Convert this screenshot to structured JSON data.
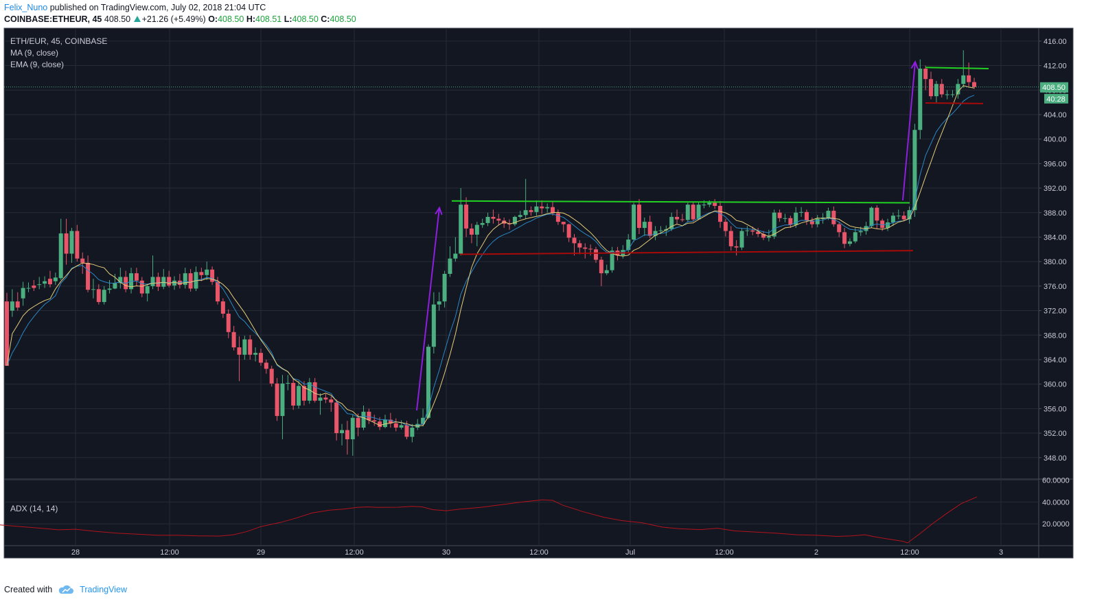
{
  "header": {
    "author": "Felix_Nuno",
    "published": "published on TradingView.com, July 02, 2018 21:04 UTC",
    "symbol": "COINBASE:ETHEUR, 45",
    "last": "408.50",
    "change": "+21.26 (+5.49%)",
    "o_label": "O:",
    "o_value": "408.50",
    "h_label": "H:",
    "h_value": "408.51",
    "l_label": "L:",
    "l_value": "408.50",
    "c_label": "C:",
    "c_value": "408.50"
  },
  "legend": {
    "pair": "ETH/EUR, 45, COINBASE",
    "ma": "MA (9, close)",
    "ema": "EMA (9, close)",
    "adx": "ADX (14, 14)"
  },
  "footer": {
    "created_with": "Created with",
    "brand": "TradingView"
  },
  "colors": {
    "background": "#131722",
    "up": "#4caf80",
    "down": "#e9566a",
    "ma": "#2b88c6",
    "ema": "#e7ce79",
    "adx": "#b3131c",
    "trend_green": "#22d222",
    "trend_red": "#a80a0a",
    "arrow": "#8f1ee0"
  },
  "chart_data": {
    "type": "candlestick",
    "price_axis": {
      "ticks": [
        "416.00",
        "412.00",
        "408.00",
        "404.00",
        "400.00",
        "396.00",
        "392.00",
        "388.00",
        "384.00",
        "380.00",
        "376.00",
        "372.00",
        "368.00",
        "364.00",
        "360.00",
        "356.00",
        "352.00",
        "348.00"
      ],
      "range": [
        344.5,
        418
      ]
    },
    "adx_axis": {
      "ticks": [
        "60.0000",
        "40.0000",
        "20.0000"
      ],
      "range": [
        0,
        61
      ]
    },
    "time_axis": {
      "labels": [
        "28",
        "12:00",
        "29",
        "12:00",
        "30",
        "12:00",
        "Jul",
        "12:00",
        "2",
        "12:00",
        "3"
      ]
    },
    "current_price": "408.50",
    "countdown": "40:28",
    "candles": [
      [
        373.5,
        363.0,
        374.9,
        373.5
      ],
      [
        372.0,
        373.5,
        375.5,
        371.0
      ],
      [
        373.5,
        372.5,
        375.0,
        372.0
      ],
      [
        374.0,
        375.7,
        376.7,
        372.8
      ],
      [
        375.7,
        375.7,
        376.6,
        375.0
      ],
      [
        376.1,
        375.7,
        377.0,
        375.2
      ],
      [
        376.2,
        376.3,
        377.5,
        375.5
      ],
      [
        376.4,
        376.8,
        377.6,
        375.7
      ],
      [
        377.2,
        376.3,
        378.5,
        375.8
      ],
      [
        376.8,
        377.4,
        378.2,
        376.2
      ],
      [
        377.3,
        384.6,
        387.0,
        377.0
      ],
      [
        384.6,
        381.3,
        387.0,
        379.5
      ],
      [
        381.3,
        385.0,
        385.5,
        379.8
      ],
      [
        385.0,
        380.5,
        386.0,
        380.0
      ],
      [
        380.5,
        379.8,
        381.5,
        378.0
      ],
      [
        379.8,
        375.4,
        381.0,
        375.0
      ],
      [
        375.4,
        375.5,
        377.2,
        374.0
      ],
      [
        375.5,
        373.4,
        376.3,
        373.0
      ],
      [
        373.4,
        375.4,
        376.0,
        373.0
      ],
      [
        375.4,
        375.6,
        377.0,
        374.8
      ],
      [
        375.6,
        376.5,
        378.0,
        375.5
      ],
      [
        376.5,
        377.5,
        379.0,
        375.6
      ],
      [
        377.5,
        375.5,
        378.5,
        375.0
      ],
      [
        375.5,
        378.1,
        379.0,
        374.8
      ],
      [
        378.1,
        376.9,
        379.0,
        376.0
      ],
      [
        376.9,
        374.8,
        377.5,
        374.2
      ],
      [
        374.8,
        376.0,
        376.3,
        373.5
      ],
      [
        376.0,
        377.5,
        381.0,
        375.5
      ],
      [
        377.5,
        375.9,
        378.2,
        375.2
      ],
      [
        375.9,
        377.5,
        378.8,
        375.5
      ],
      [
        377.5,
        376.1,
        378.5,
        375.8
      ],
      [
        376.1,
        376.9,
        377.6,
        375.4
      ],
      [
        376.9,
        376.2,
        378.0,
        375.6
      ],
      [
        376.2,
        378.1,
        379.0,
        375.6
      ],
      [
        378.1,
        375.6,
        378.8,
        375.1
      ],
      [
        375.6,
        378.3,
        379.2,
        375.2
      ],
      [
        378.3,
        377.8,
        379.0,
        376.8
      ],
      [
        377.8,
        378.7,
        380.0,
        377.0
      ],
      [
        378.7,
        376.7,
        379.2,
        376.2
      ],
      [
        376.7,
        373.5,
        377.5,
        373.0
      ],
      [
        373.5,
        371.5,
        374.0,
        370.8
      ],
      [
        371.5,
        368.5,
        372.2,
        367.5
      ],
      [
        368.5,
        366.0,
        369.5,
        365.5
      ],
      [
        366.0,
        364.8,
        367.8,
        360.5
      ],
      [
        364.8,
        367.3,
        367.9,
        364.0
      ],
      [
        367.3,
        364.8,
        368.0,
        364.0
      ],
      [
        364.8,
        365.1,
        366.0,
        363.7
      ],
      [
        365.1,
        363.5,
        365.8,
        363.0
      ],
      [
        363.5,
        362.5,
        364.0,
        361.7
      ],
      [
        362.5,
        360.1,
        363.0,
        359.6
      ],
      [
        360.1,
        354.8,
        361.0,
        354.0
      ],
      [
        354.8,
        360.1,
        361.5,
        351.0
      ],
      [
        360.1,
        360.2,
        361.5,
        359.0
      ],
      [
        360.2,
        356.5,
        361.0,
        355.8
      ],
      [
        356.5,
        359.7,
        360.5,
        356.0
      ],
      [
        359.7,
        357.3,
        360.5,
        356.5
      ],
      [
        357.3,
        360.3,
        361.0,
        356.8
      ],
      [
        360.3,
        357.3,
        361.0,
        357.0
      ],
      [
        357.3,
        357.8,
        358.5,
        355.0
      ],
      [
        357.8,
        357.5,
        358.4,
        356.9
      ],
      [
        357.5,
        357.0,
        358.0,
        355.5
      ],
      [
        357.0,
        352.0,
        357.5,
        350.8
      ],
      [
        352.0,
        352.5,
        353.5,
        350.0
      ],
      [
        352.5,
        351.0,
        354.0,
        348.5
      ],
      [
        351.0,
        354.5,
        355.0,
        348.3
      ],
      [
        354.5,
        352.9,
        355.2,
        351.5
      ],
      [
        352.9,
        355.5,
        356.5,
        352.5
      ],
      [
        355.5,
        354.1,
        356.0,
        353.5
      ],
      [
        354.1,
        353.9,
        355.0,
        353.2
      ],
      [
        353.9,
        353.0,
        354.6,
        352.5
      ],
      [
        353.0,
        354.2,
        355.0,
        352.8
      ],
      [
        354.2,
        353.6,
        355.3,
        352.9
      ],
      [
        353.6,
        352.9,
        354.4,
        352.3
      ],
      [
        352.9,
        353.3,
        354.1,
        352.6
      ],
      [
        353.3,
        351.4,
        354.0,
        351.0
      ],
      [
        351.4,
        352.9,
        353.5,
        350.5
      ],
      [
        352.9,
        353.5,
        354.3,
        352.5
      ],
      [
        353.5,
        354.5,
        356.0,
        353.1
      ],
      [
        354.5,
        366.1,
        366.5,
        354.3
      ],
      [
        366.1,
        373.0,
        375.0,
        365.0
      ],
      [
        373.0,
        373.5,
        375.0,
        372.0
      ],
      [
        373.5,
        378.0,
        378.5,
        372.5
      ],
      [
        378.0,
        380.5,
        382.5,
        377.5
      ],
      [
        380.5,
        381.3,
        384.0,
        380.0
      ],
      [
        381.3,
        389.3,
        392.0,
        381.0
      ],
      [
        389.3,
        385.4,
        390.5,
        384.0
      ],
      [
        385.4,
        384.4,
        386.2,
        383.0
      ],
      [
        384.4,
        386.0,
        386.5,
        382.5
      ],
      [
        386.0,
        386.3,
        387.0,
        385.5
      ],
      [
        386.3,
        387.3,
        388.0,
        385.8
      ],
      [
        387.3,
        387.0,
        388.5,
        386.2
      ],
      [
        387.0,
        386.7,
        387.8,
        386.0
      ],
      [
        386.7,
        386.2,
        387.2,
        385.5
      ],
      [
        386.2,
        386.1,
        386.9,
        385.2
      ],
      [
        386.1,
        387.3,
        387.5,
        385.8
      ],
      [
        387.3,
        387.6,
        388.3,
        387.0
      ],
      [
        387.6,
        388.4,
        393.5,
        387.0
      ],
      [
        388.4,
        388.1,
        389.0,
        387.5
      ],
      [
        388.1,
        389.0,
        390.0,
        387.5
      ],
      [
        389.0,
        388.7,
        390.0,
        387.8
      ],
      [
        388.7,
        388.9,
        389.5,
        388.0
      ],
      [
        388.9,
        387.9,
        389.8,
        387.5
      ],
      [
        387.9,
        386.5,
        388.5,
        386.0
      ],
      [
        386.5,
        386.1,
        386.5,
        384.8
      ],
      [
        386.1,
        383.9,
        386.2,
        383.2
      ],
      [
        383.9,
        383.0,
        384.5,
        381.0
      ],
      [
        383.0,
        382.3,
        383.5,
        381.2
      ],
      [
        382.3,
        382.1,
        383.0,
        380.5
      ],
      [
        382.1,
        382.0,
        382.8,
        381.0
      ],
      [
        382.0,
        380.3,
        382.4,
        379.8
      ],
      [
        380.3,
        378.1,
        380.8,
        376.0
      ],
      [
        378.1,
        378.6,
        379.5,
        377.8
      ],
      [
        378.6,
        381.8,
        382.4,
        378.2
      ],
      [
        381.8,
        381.0,
        382.4,
        380.2
      ],
      [
        381.0,
        381.9,
        382.7,
        380.5
      ],
      [
        381.9,
        383.6,
        384.5,
        381.3
      ],
      [
        383.6,
        389.3,
        389.6,
        383.2
      ],
      [
        389.3,
        385.5,
        390.2,
        384.5
      ],
      [
        385.5,
        386.5,
        387.2,
        384.2
      ],
      [
        386.5,
        384.2,
        387.5,
        383.8
      ],
      [
        384.2,
        385.0,
        385.8,
        383.5
      ],
      [
        385.0,
        385.1,
        385.8,
        384.5
      ],
      [
        385.1,
        385.3,
        385.9,
        384.2
      ],
      [
        385.3,
        387.3,
        388.0,
        385.0
      ],
      [
        387.3,
        386.9,
        388.5,
        386.2
      ],
      [
        386.9,
        386.8,
        387.8,
        386.5
      ],
      [
        386.8,
        389.3,
        389.6,
        386.5
      ],
      [
        389.3,
        386.9,
        389.8,
        386.5
      ],
      [
        386.9,
        389.3,
        389.8,
        386.8
      ],
      [
        389.3,
        389.3,
        390.0,
        388.7
      ],
      [
        389.3,
        389.6,
        390.0,
        388.9
      ],
      [
        389.6,
        389.1,
        390.2,
        388.6
      ],
      [
        389.1,
        386.5,
        389.9,
        385.5
      ],
      [
        386.5,
        385.0,
        387.0,
        384.1
      ],
      [
        385.0,
        382.5,
        385.8,
        381.8
      ],
      [
        382.5,
        382.3,
        383.5,
        381.0
      ],
      [
        382.3,
        385.0,
        385.5,
        381.9
      ],
      [
        385.0,
        385.1,
        385.8,
        384.2
      ],
      [
        385.1,
        384.9,
        385.7,
        384.3
      ],
      [
        384.9,
        384.5,
        385.5,
        384.0
      ],
      [
        384.5,
        383.9,
        385.0,
        383.5
      ],
      [
        383.9,
        384.1,
        385.2,
        383.3
      ],
      [
        384.1,
        388.0,
        388.5,
        383.7
      ],
      [
        388.0,
        387.1,
        388.5,
        386.5
      ],
      [
        387.1,
        387.1,
        387.8,
        386.4
      ],
      [
        387.1,
        386.0,
        387.5,
        385.5
      ],
      [
        386.0,
        388.0,
        388.9,
        385.5
      ],
      [
        388.0,
        388.1,
        388.9,
        387.3
      ],
      [
        388.1,
        386.7,
        388.5,
        386.0
      ],
      [
        386.7,
        386.1,
        387.2,
        385.5
      ],
      [
        386.1,
        387.0,
        387.6,
        385.6
      ],
      [
        387.0,
        387.2,
        387.9,
        386.2
      ],
      [
        387.2,
        388.3,
        388.8,
        386.8
      ],
      [
        388.3,
        386.1,
        389.0,
        385.7
      ],
      [
        386.1,
        384.8,
        386.5,
        384.0
      ],
      [
        384.8,
        382.9,
        385.5,
        382.2
      ],
      [
        382.9,
        383.3,
        383.8,
        382.5
      ],
      [
        383.3,
        384.8,
        385.5,
        383.0
      ],
      [
        384.8,
        385.0,
        385.7,
        384.2
      ],
      [
        385.0,
        385.8,
        386.5,
        384.4
      ],
      [
        385.8,
        388.8,
        389.0,
        385.5
      ],
      [
        388.8,
        386.7,
        389.2,
        385.4
      ],
      [
        386.7,
        385.5,
        387.0,
        385.0
      ],
      [
        385.5,
        386.4,
        387.0,
        385.0
      ],
      [
        386.4,
        387.5,
        388.0,
        385.8
      ],
      [
        387.5,
        387.5,
        388.5,
        386.9
      ],
      [
        387.5,
        386.9,
        388.2,
        386.6
      ],
      [
        386.9,
        388.4,
        389.0,
        386.2
      ],
      [
        388.4,
        401.5,
        402.5,
        387.3
      ],
      [
        401.5,
        411.5,
        413.0,
        400.0
      ],
      [
        411.5,
        409.8,
        412.0,
        408.0
      ],
      [
        409.8,
        407.0,
        411.0,
        406.5
      ],
      [
        407.0,
        409.0,
        409.5,
        406.0
      ],
      [
        409.0,
        407.3,
        409.8,
        406.8
      ],
      [
        407.3,
        407.3,
        408.0,
        406.5
      ],
      [
        407.3,
        407.3,
        408.0,
        406.8
      ],
      [
        407.3,
        409.0,
        409.8,
        406.6
      ],
      [
        409.0,
        410.4,
        414.5,
        408.4
      ],
      [
        410.4,
        409.3,
        412.5,
        408.4
      ],
      [
        409.3,
        408.5,
        410.0,
        408.2
      ]
    ],
    "adx_points": [
      [
        0,
        19
      ],
      [
        30,
        17.5
      ],
      [
        60,
        16
      ],
      [
        85,
        14.5
      ],
      [
        110,
        15
      ],
      [
        140,
        13
      ],
      [
        170,
        11.5
      ],
      [
        200,
        10.5
      ],
      [
        230,
        9.5
      ],
      [
        260,
        9.5
      ],
      [
        290,
        9
      ],
      [
        320,
        8.8
      ],
      [
        340,
        10
      ],
      [
        360,
        13
      ],
      [
        380,
        17.5
      ],
      [
        410,
        21.5
      ],
      [
        430,
        25
      ],
      [
        455,
        30
      ],
      [
        480,
        32.5
      ],
      [
        500,
        33.5
      ],
      [
        520,
        35
      ],
      [
        535,
        35.5
      ],
      [
        550,
        35
      ],
      [
        580,
        35.2
      ],
      [
        600,
        36
      ],
      [
        615,
        35.5
      ],
      [
        630,
        33
      ],
      [
        650,
        32
      ],
      [
        670,
        33.5
      ],
      [
        700,
        35
      ],
      [
        730,
        37.5
      ],
      [
        760,
        40
      ],
      [
        790,
        42
      ],
      [
        805,
        41.5
      ],
      [
        820,
        37
      ],
      [
        850,
        31
      ],
      [
        880,
        26
      ],
      [
        905,
        23
      ],
      [
        935,
        21
      ],
      [
        965,
        17
      ],
      [
        990,
        15.5
      ],
      [
        1020,
        14.7
      ],
      [
        1045,
        16
      ],
      [
        1070,
        13.5
      ],
      [
        1100,
        12.5
      ],
      [
        1130,
        11.5
      ],
      [
        1160,
        10
      ],
      [
        1190,
        9.5
      ],
      [
        1220,
        8.5
      ],
      [
        1240,
        9
      ],
      [
        1260,
        10
      ],
      [
        1275,
        8
      ],
      [
        1295,
        6
      ],
      [
        1315,
        4
      ],
      [
        1322,
        2.5
      ],
      [
        1340,
        11
      ],
      [
        1360,
        21
      ],
      [
        1380,
        30
      ],
      [
        1400,
        38.5
      ],
      [
        1423,
        44.7
      ]
    ],
    "trendlines": [
      {
        "from": [
          658,
          389.9
        ],
        "to": [
          1325,
          389.6
        ],
        "color": "green"
      },
      {
        "from": [
          670,
          381.2
        ],
        "to": [
          1330,
          381.8
        ],
        "color": "red"
      },
      {
        "from": [
          1348,
          411.7
        ],
        "to": [
          1440,
          411.5
        ],
        "color": "green"
      },
      {
        "from": [
          1348,
          405.9
        ],
        "to": [
          1432,
          405.8
        ],
        "color": "red"
      }
    ],
    "arrows": [
      {
        "from": [
          607,
          355.7
        ],
        "to": [
          640,
          388.8
        ]
      },
      {
        "from": [
          1315,
          390.0
        ],
        "to": [
          1333,
          412.6
        ]
      }
    ],
    "grid": true
  }
}
